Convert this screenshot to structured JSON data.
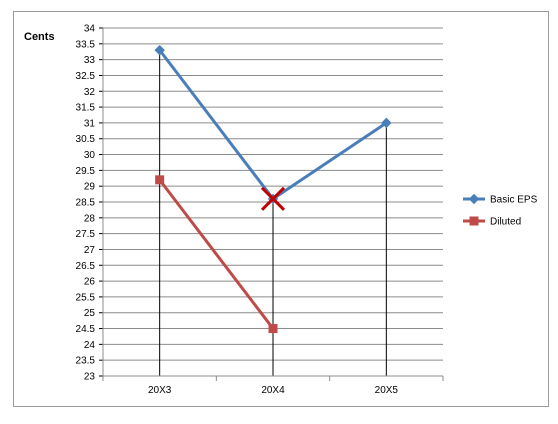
{
  "chart_data": {
    "type": "line",
    "title": "",
    "ylabel": "Cents",
    "xlabel": "",
    "ylim": [
      23,
      34
    ],
    "ytick_step": 0.5,
    "categories": [
      "20X3",
      "20X4",
      "20X5"
    ],
    "grid": true,
    "legend_position": "right",
    "series": [
      {
        "name": "Basic EPS",
        "values": [
          33.3,
          28.6,
          31.0
        ],
        "color": "#4a7ebb",
        "marker": "diamond"
      },
      {
        "name": "Diluted",
        "values": [
          29.2,
          24.5,
          null
        ],
        "color": "#be4b48",
        "marker": "square"
      }
    ],
    "annotations": [
      {
        "type": "cross",
        "category": "20X4",
        "value": 28.6,
        "color": "#c00000"
      }
    ]
  }
}
